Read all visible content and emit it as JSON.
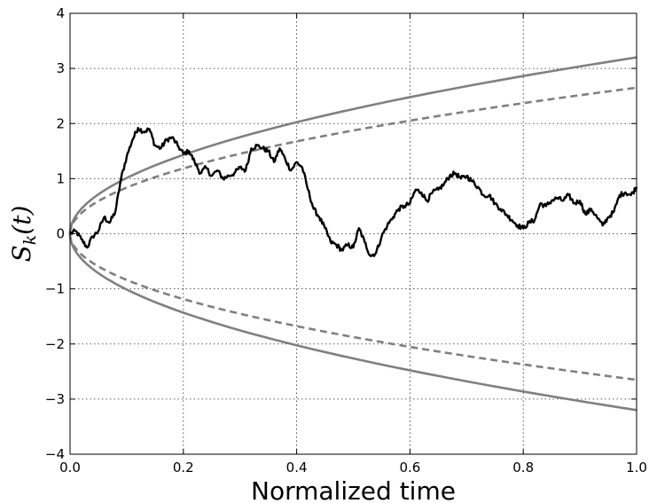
{
  "chart_data": {
    "type": "line",
    "xlabel": "Normalized time",
    "ylabel_text": "S",
    "ylabel_subscript": "k",
    "ylabel_suffix": "(t)",
    "xlim": [
      0.0,
      1.0
    ],
    "ylim": [
      -4,
      4
    ],
    "x_ticks": [
      0.0,
      0.2,
      0.4,
      0.6,
      0.8,
      1.0
    ],
    "x_tick_labels": [
      "0.0",
      "0.2",
      "0.4",
      "0.6",
      "0.8",
      "1.0"
    ],
    "y_ticks": [
      -4,
      -3,
      -2,
      -1,
      0,
      1,
      2,
      3,
      4
    ],
    "y_tick_labels": [
      "−4",
      "−3",
      "−2",
      "−1",
      "0",
      "1",
      "2",
      "3",
      "4"
    ],
    "grid": true,
    "colors": {
      "walk": "#000000",
      "bound": "#808080"
    },
    "boundaries": [
      {
        "style": "solid",
        "formula": "y = 3.2*sqrt(x)",
        "x": [
          0,
          0.0025,
          0.01,
          0.025,
          0.05,
          0.1,
          0.15,
          0.2,
          0.3,
          0.4,
          0.5,
          0.6,
          0.7,
          0.8,
          0.9,
          1.0
        ],
        "upper": [
          0,
          0.16,
          0.32,
          0.51,
          0.72,
          1.01,
          1.24,
          1.43,
          1.75,
          2.02,
          2.26,
          2.48,
          2.68,
          2.86,
          3.04,
          3.2
        ]
      },
      {
        "style": "dashed",
        "formula": "y = 2.65*sqrt(x)",
        "x": [
          0,
          0.0025,
          0.01,
          0.025,
          0.05,
          0.1,
          0.15,
          0.2,
          0.3,
          0.4,
          0.5,
          0.6,
          0.7,
          0.8,
          0.9,
          1.0
        ],
        "upper": [
          0,
          0.13,
          0.27,
          0.42,
          0.59,
          0.84,
          1.03,
          1.19,
          1.45,
          1.68,
          1.87,
          2.05,
          2.22,
          2.37,
          2.51,
          2.65
        ]
      }
    ],
    "walk": {
      "x": [
        0.0,
        0.01,
        0.02,
        0.03,
        0.04,
        0.05,
        0.06,
        0.07,
        0.08,
        0.09,
        0.1,
        0.11,
        0.12,
        0.13,
        0.14,
        0.15,
        0.16,
        0.17,
        0.18,
        0.19,
        0.2,
        0.21,
        0.22,
        0.23,
        0.24,
        0.25,
        0.26,
        0.27,
        0.28,
        0.29,
        0.3,
        0.31,
        0.32,
        0.33,
        0.34,
        0.35,
        0.36,
        0.37,
        0.38,
        0.39,
        0.4,
        0.41,
        0.42,
        0.43,
        0.44,
        0.45,
        0.46,
        0.47,
        0.48,
        0.49,
        0.5,
        0.51,
        0.52,
        0.53,
        0.54,
        0.55,
        0.56,
        0.57,
        0.58,
        0.59,
        0.6,
        0.61,
        0.62,
        0.63,
        0.64,
        0.65,
        0.66,
        0.67,
        0.68,
        0.69,
        0.7,
        0.71,
        0.72,
        0.73,
        0.74,
        0.75,
        0.76,
        0.77,
        0.78,
        0.79,
        0.8,
        0.81,
        0.82,
        0.83,
        0.84,
        0.85,
        0.86,
        0.87,
        0.88,
        0.89,
        0.9,
        0.91,
        0.92,
        0.93,
        0.94,
        0.95,
        0.96,
        0.97,
        0.98,
        0.99,
        1.0
      ],
      "y": [
        0.0,
        0.05,
        -0.1,
        -0.25,
        -0.05,
        0.05,
        0.3,
        0.2,
        0.4,
        1.0,
        1.4,
        1.7,
        1.92,
        1.85,
        1.9,
        1.6,
        1.55,
        1.7,
        1.75,
        1.6,
        1.45,
        1.5,
        1.3,
        1.1,
        1.2,
        1.05,
        1.15,
        1.0,
        1.05,
        1.1,
        1.2,
        1.15,
        1.55,
        1.6,
        1.55,
        1.5,
        1.3,
        1.55,
        1.35,
        1.15,
        1.3,
        1.2,
        0.8,
        0.45,
        0.3,
        0.1,
        -0.15,
        -0.2,
        -0.3,
        -0.2,
        -0.25,
        0.1,
        -0.15,
        -0.4,
        -0.35,
        -0.05,
        0.15,
        0.3,
        0.45,
        0.5,
        0.55,
        0.8,
        0.75,
        0.6,
        0.75,
        0.8,
        0.9,
        1.05,
        1.1,
        1.0,
        1.05,
        0.95,
        0.85,
        0.7,
        0.7,
        0.55,
        0.45,
        0.35,
        0.25,
        0.15,
        0.1,
        0.2,
        0.25,
        0.55,
        0.5,
        0.6,
        0.65,
        0.6,
        0.7,
        0.55,
        0.6,
        0.35,
        0.45,
        0.3,
        0.15,
        0.3,
        0.4,
        0.7,
        0.75,
        0.7,
        0.85
      ]
    }
  }
}
